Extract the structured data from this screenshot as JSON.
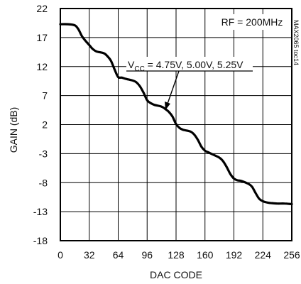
{
  "chart_data": {
    "type": "line",
    "title": "",
    "xlabel": "DAC CODE",
    "ylabel": "GAIN (dB)",
    "xlim": [
      0,
      256
    ],
    "ylim": [
      -18,
      22
    ],
    "x_ticks": [
      0,
      32,
      64,
      96,
      128,
      160,
      192,
      224,
      256
    ],
    "y_ticks": [
      22,
      17,
      12,
      7,
      2,
      -3,
      -8,
      -13,
      -18
    ],
    "grid": true,
    "annotations": {
      "condition": "RF = 200MHz",
      "vcc_label_prefix": "V",
      "vcc_label_sub": "CC",
      "vcc_label_rest": " = 4.75V, 5.00V, 5.25V",
      "part_id": "MAX2065 toc14"
    },
    "series": [
      {
        "x": [
          0,
          8,
          16,
          20,
          24,
          28,
          32,
          36,
          40,
          48,
          52,
          56,
          60,
          64,
          68,
          72,
          80,
          84,
          88,
          92,
          96,
          100,
          104,
          112,
          116,
          120,
          124,
          128,
          132,
          136,
          144,
          148,
          152,
          156,
          160,
          164,
          168,
          176,
          180,
          184,
          188,
          192,
          196,
          200,
          208,
          212,
          216,
          220,
          224,
          228,
          232,
          240,
          248,
          256
        ],
        "values": [
          19.3,
          19.3,
          19.1,
          18.4,
          17.2,
          16.4,
          15.7,
          15.0,
          14.6,
          14.3,
          13.8,
          13.0,
          11.5,
          10.2,
          10.1,
          9.9,
          9.6,
          9.3,
          8.6,
          7.5,
          6.2,
          5.7,
          5.4,
          5.1,
          4.7,
          4.2,
          3.4,
          2.1,
          1.4,
          1.1,
          0.8,
          0.3,
          -0.6,
          -1.8,
          -2.5,
          -2.8,
          -3.1,
          -3.7,
          -4.3,
          -5.3,
          -6.5,
          -7.3,
          -7.6,
          -7.7,
          -8.2,
          -8.7,
          -9.8,
          -10.8,
          -11.2,
          -11.4,
          -11.5,
          -11.6,
          -11.6,
          -11.7
        ]
      }
    ]
  }
}
